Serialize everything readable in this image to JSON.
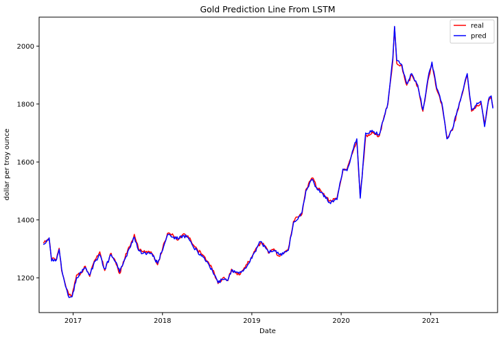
{
  "chart_data": {
    "type": "line",
    "title": "Gold Prediction Line From LSTM",
    "xlabel": "Date",
    "ylabel": "dollar per troy ounce",
    "x_range": [
      "2016-08-15",
      "2021-10-01"
    ],
    "ylim": [
      1080,
      2100
    ],
    "x_ticks": [
      "2017-01-01",
      "2018-01-01",
      "2019-01-01",
      "2020-01-01",
      "2021-01-01"
    ],
    "x_tick_labels": [
      "2017",
      "2018",
      "2019",
      "2020",
      "2021"
    ],
    "y_ticks": [
      1200,
      1400,
      1600,
      1800,
      2000
    ],
    "y_tick_labels": [
      "1200",
      "1400",
      "1600",
      "1800",
      "2000"
    ],
    "grid": false,
    "legend_position": "top-right",
    "series": [
      {
        "name": "real",
        "color": "#ff0000",
        "points": [
          [
            "2016-09-01",
            1320
          ],
          [
            "2016-09-15",
            1325
          ],
          [
            "2016-09-25",
            1335
          ],
          [
            "2016-10-05",
            1262
          ],
          [
            "2016-10-25",
            1265
          ],
          [
            "2016-11-05",
            1302
          ],
          [
            "2016-11-15",
            1225
          ],
          [
            "2016-12-01",
            1175
          ],
          [
            "2016-12-15",
            1140
          ],
          [
            "2016-12-28",
            1140
          ],
          [
            "2017-01-15",
            1210
          ],
          [
            "2017-02-01",
            1215
          ],
          [
            "2017-02-20",
            1240
          ],
          [
            "2017-03-10",
            1205
          ],
          [
            "2017-03-25",
            1250
          ],
          [
            "2017-04-20",
            1290
          ],
          [
            "2017-05-10",
            1225
          ],
          [
            "2017-06-05",
            1285
          ],
          [
            "2017-06-30",
            1240
          ],
          [
            "2017-07-10",
            1215
          ],
          [
            "2017-08-01",
            1270
          ],
          [
            "2017-09-08",
            1350
          ],
          [
            "2017-09-25",
            1300
          ],
          [
            "2017-10-15",
            1290
          ],
          [
            "2017-11-15",
            1290
          ],
          [
            "2017-12-12",
            1245
          ],
          [
            "2018-01-10",
            1325
          ],
          [
            "2018-01-25",
            1355
          ],
          [
            "2018-02-15",
            1345
          ],
          [
            "2018-03-05",
            1330
          ],
          [
            "2018-03-25",
            1350
          ],
          [
            "2018-04-15",
            1345
          ],
          [
            "2018-05-05",
            1315
          ],
          [
            "2018-05-25",
            1295
          ],
          [
            "2018-06-20",
            1275
          ],
          [
            "2018-07-10",
            1250
          ],
          [
            "2018-08-01",
            1215
          ],
          [
            "2018-08-16",
            1180
          ],
          [
            "2018-09-05",
            1200
          ],
          [
            "2018-09-25",
            1190
          ],
          [
            "2018-10-10",
            1230
          ],
          [
            "2018-11-10",
            1210
          ],
          [
            "2018-12-01",
            1235
          ],
          [
            "2018-12-20",
            1255
          ],
          [
            "2019-01-10",
            1290
          ],
          [
            "2019-02-05",
            1320
          ],
          [
            "2019-02-25",
            1310
          ],
          [
            "2019-03-10",
            1285
          ],
          [
            "2019-04-01",
            1300
          ],
          [
            "2019-04-22",
            1275
          ],
          [
            "2019-05-10",
            1285
          ],
          [
            "2019-05-30",
            1300
          ],
          [
            "2019-06-20",
            1395
          ],
          [
            "2019-07-05",
            1410
          ],
          [
            "2019-07-25",
            1420
          ],
          [
            "2019-08-10",
            1505
          ],
          [
            "2019-09-05",
            1545
          ],
          [
            "2019-09-25",
            1510
          ],
          [
            "2019-10-10",
            1500
          ],
          [
            "2019-11-15",
            1465
          ],
          [
            "2019-12-15",
            1475
          ],
          [
            "2020-01-08",
            1570
          ],
          [
            "2020-01-25",
            1575
          ],
          [
            "2020-02-20",
            1640
          ],
          [
            "2020-03-05",
            1670
          ],
          [
            "2020-03-19",
            1480
          ],
          [
            "2020-04-10",
            1690
          ],
          [
            "2020-05-10",
            1700
          ],
          [
            "2020-06-05",
            1690
          ],
          [
            "2020-06-25",
            1760
          ],
          [
            "2020-07-10",
            1800
          ],
          [
            "2020-07-30",
            1950
          ],
          [
            "2020-08-06",
            2065
          ],
          [
            "2020-08-15",
            1940
          ],
          [
            "2020-09-05",
            1930
          ],
          [
            "2020-09-25",
            1865
          ],
          [
            "2020-10-15",
            1900
          ],
          [
            "2020-11-09",
            1860
          ],
          [
            "2020-11-30",
            1775
          ],
          [
            "2020-12-20",
            1880
          ],
          [
            "2021-01-06",
            1940
          ],
          [
            "2021-01-25",
            1850
          ],
          [
            "2021-02-15",
            1800
          ],
          [
            "2021-03-08",
            1685
          ],
          [
            "2021-03-31",
            1710
          ],
          [
            "2021-04-20",
            1775
          ],
          [
            "2021-05-10",
            1835
          ],
          [
            "2021-05-30",
            1900
          ],
          [
            "2021-06-17",
            1775
          ],
          [
            "2021-07-05",
            1790
          ],
          [
            "2021-07-25",
            1805
          ],
          [
            "2021-08-09",
            1730
          ],
          [
            "2021-08-25",
            1810
          ],
          [
            "2021-09-05",
            1825
          ],
          [
            "2021-09-12",
            1790
          ]
        ]
      },
      {
        "name": "pred",
        "color": "#0000ff",
        "points": [
          [
            "2016-09-01",
            1315
          ],
          [
            "2016-09-15",
            1330
          ],
          [
            "2016-09-25",
            1338
          ],
          [
            "2016-10-05",
            1258
          ],
          [
            "2016-10-25",
            1262
          ],
          [
            "2016-11-05",
            1298
          ],
          [
            "2016-11-15",
            1230
          ],
          [
            "2016-12-01",
            1170
          ],
          [
            "2016-12-15",
            1132
          ],
          [
            "2016-12-28",
            1135
          ],
          [
            "2017-01-15",
            1200
          ],
          [
            "2017-02-01",
            1220
          ],
          [
            "2017-02-20",
            1235
          ],
          [
            "2017-03-10",
            1210
          ],
          [
            "2017-03-25",
            1245
          ],
          [
            "2017-04-20",
            1280
          ],
          [
            "2017-05-10",
            1230
          ],
          [
            "2017-06-05",
            1280
          ],
          [
            "2017-06-30",
            1245
          ],
          [
            "2017-07-10",
            1220
          ],
          [
            "2017-08-01",
            1265
          ],
          [
            "2017-09-08",
            1340
          ],
          [
            "2017-09-25",
            1295
          ],
          [
            "2017-10-15",
            1285
          ],
          [
            "2017-11-15",
            1285
          ],
          [
            "2017-12-12",
            1250
          ],
          [
            "2018-01-10",
            1320
          ],
          [
            "2018-01-25",
            1350
          ],
          [
            "2018-02-15",
            1340
          ],
          [
            "2018-03-05",
            1335
          ],
          [
            "2018-03-25",
            1345
          ],
          [
            "2018-04-15",
            1340
          ],
          [
            "2018-05-05",
            1310
          ],
          [
            "2018-05-25",
            1290
          ],
          [
            "2018-06-20",
            1270
          ],
          [
            "2018-07-10",
            1245
          ],
          [
            "2018-08-01",
            1210
          ],
          [
            "2018-08-16",
            1183
          ],
          [
            "2018-09-05",
            1195
          ],
          [
            "2018-09-25",
            1192
          ],
          [
            "2018-10-10",
            1225
          ],
          [
            "2018-11-10",
            1215
          ],
          [
            "2018-12-01",
            1230
          ],
          [
            "2018-12-20",
            1250
          ],
          [
            "2019-01-10",
            1285
          ],
          [
            "2019-02-05",
            1325
          ],
          [
            "2019-02-25",
            1305
          ],
          [
            "2019-03-10",
            1290
          ],
          [
            "2019-04-01",
            1295
          ],
          [
            "2019-04-22",
            1280
          ],
          [
            "2019-05-10",
            1282
          ],
          [
            "2019-05-30",
            1295
          ],
          [
            "2019-06-20",
            1390
          ],
          [
            "2019-07-05",
            1400
          ],
          [
            "2019-07-25",
            1425
          ],
          [
            "2019-08-10",
            1500
          ],
          [
            "2019-09-05",
            1540
          ],
          [
            "2019-09-25",
            1505
          ],
          [
            "2019-10-10",
            1495
          ],
          [
            "2019-11-15",
            1460
          ],
          [
            "2019-12-15",
            1470
          ],
          [
            "2020-01-08",
            1575
          ],
          [
            "2020-01-25",
            1570
          ],
          [
            "2020-02-20",
            1645
          ],
          [
            "2020-03-05",
            1680
          ],
          [
            "2020-03-19",
            1475
          ],
          [
            "2020-04-10",
            1700
          ],
          [
            "2020-05-10",
            1705
          ],
          [
            "2020-06-05",
            1695
          ],
          [
            "2020-06-25",
            1755
          ],
          [
            "2020-07-10",
            1805
          ],
          [
            "2020-07-30",
            1960
          ],
          [
            "2020-08-06",
            2068
          ],
          [
            "2020-08-15",
            1950
          ],
          [
            "2020-09-05",
            1935
          ],
          [
            "2020-09-25",
            1870
          ],
          [
            "2020-10-15",
            1905
          ],
          [
            "2020-11-09",
            1865
          ],
          [
            "2020-11-30",
            1780
          ],
          [
            "2020-12-20",
            1885
          ],
          [
            "2021-01-06",
            1945
          ],
          [
            "2021-01-25",
            1855
          ],
          [
            "2021-02-15",
            1805
          ],
          [
            "2021-03-08",
            1680
          ],
          [
            "2021-03-31",
            1715
          ],
          [
            "2021-04-20",
            1780
          ],
          [
            "2021-05-10",
            1840
          ],
          [
            "2021-05-30",
            1905
          ],
          [
            "2021-06-17",
            1780
          ],
          [
            "2021-07-05",
            1795
          ],
          [
            "2021-07-25",
            1810
          ],
          [
            "2021-08-09",
            1722
          ],
          [
            "2021-08-25",
            1815
          ],
          [
            "2021-09-05",
            1828
          ],
          [
            "2021-09-12",
            1785
          ]
        ]
      }
    ]
  }
}
